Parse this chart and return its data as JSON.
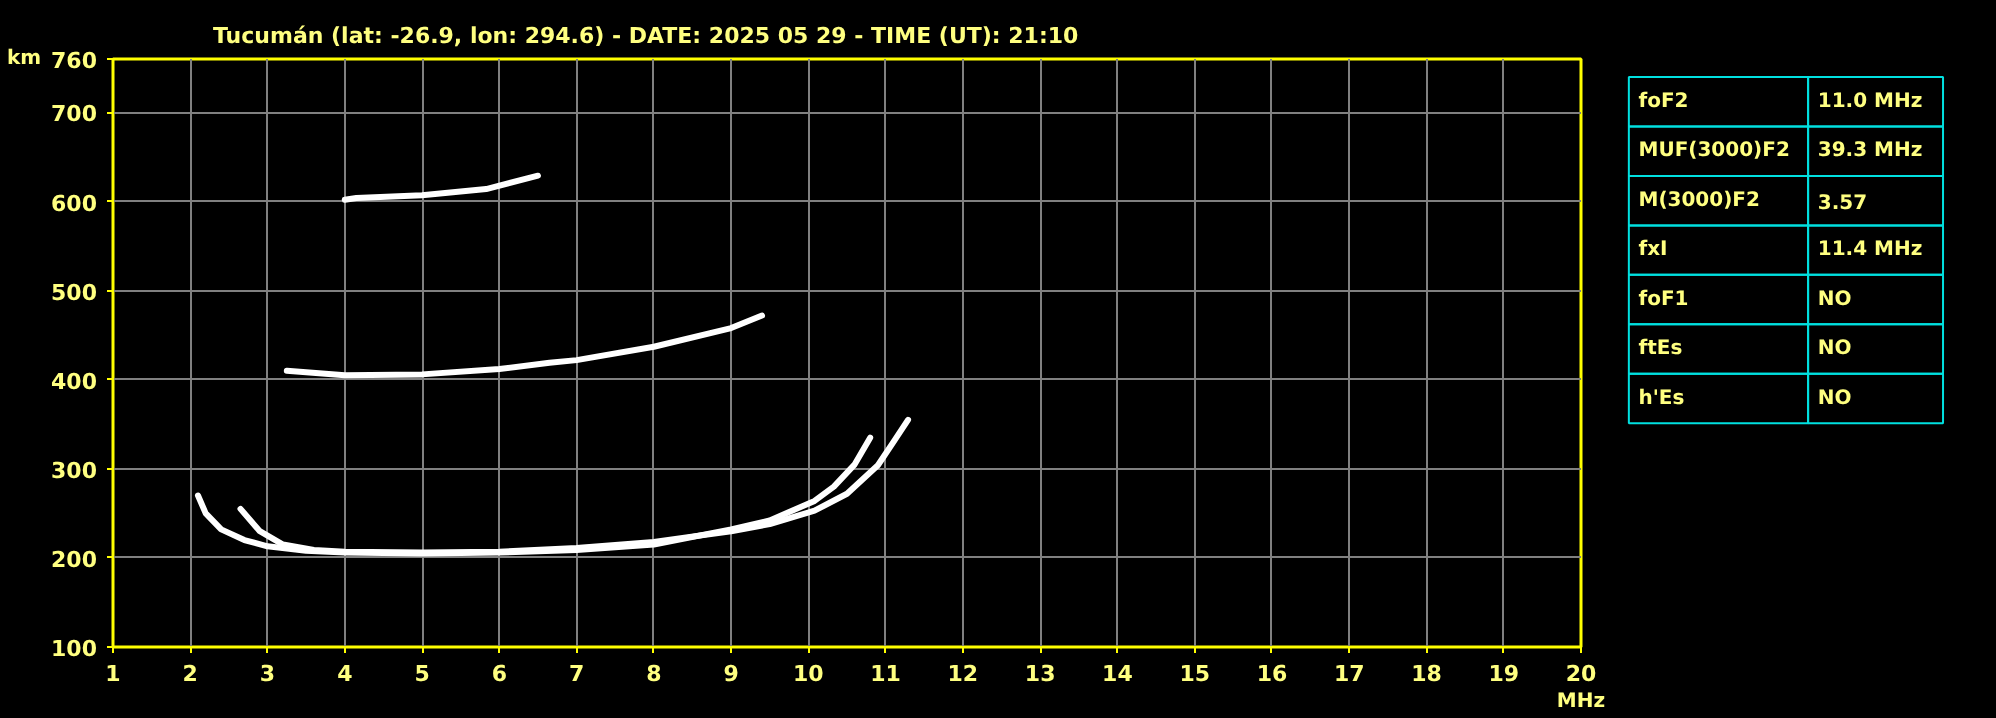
{
  "chart_data": [
    {
      "type": "line",
      "title": "Tucumán (lat: -26.9, lon: 294.6) - DATE: 2025 05 29 - TIME (UT): 21:10",
      "xlabel": "MHz",
      "ylabel": "km",
      "xlim": [
        1,
        20
      ],
      "xticks": [
        1,
        2,
        3,
        4,
        5,
        6,
        7,
        8,
        9,
        10,
        11,
        12,
        13,
        14,
        15,
        16,
        17,
        18,
        19,
        20
      ],
      "ylim": [
        100,
        760
      ],
      "yticks": [
        100,
        200,
        300,
        400,
        500,
        600,
        700,
        760
      ],
      "grid": true,
      "series": [
        {
          "color": "#ffffff",
          "x": [
            2.1,
            2.2,
            2.4,
            2.7,
            3.0,
            3.5,
            4.0,
            5.0,
            6.0,
            7.0,
            8.0,
            9.0,
            9.5,
            10.08,
            10.33,
            10.6,
            10.8
          ],
          "values": [
            270,
            250,
            232,
            220,
            213,
            208,
            206,
            205,
            206,
            209,
            215,
            232,
            242,
            264,
            280,
            305,
            335
          ]
        },
        {
          "color": "#ffffff",
          "x": [
            2.65,
            2.9,
            3.2,
            3.6,
            4.0,
            5.0,
            6.0,
            7.0,
            8.0,
            9.0,
            9.5,
            10.08,
            10.5,
            10.9,
            11.1,
            11.29
          ],
          "values": [
            255,
            230,
            215,
            209,
            207,
            206,
            207,
            211,
            218,
            230,
            238,
            253,
            272,
            304,
            330,
            355
          ]
        },
        {
          "color": "#ffffff",
          "x": [
            3.25,
            4.0,
            5.0,
            6.0,
            6.65,
            7.0,
            8.0,
            9.0,
            9.4
          ],
          "values": [
            410,
            405,
            406,
            412,
            419,
            422,
            437,
            458,
            472
          ]
        },
        {
          "color": "#ffffff",
          "x": [
            4.0,
            4.15,
            5.0,
            5.83,
            6.5
          ],
          "values": [
            602,
            604,
            607,
            614,
            629
          ]
        }
      ]
    },
    {
      "type": "other",
      "categories": [
        "foF2",
        "MUF(3000)F2",
        "M(3000)F2",
        "fxI",
        "foF1",
        "ftEs",
        "h'Es"
      ],
      "value_labels": [
        "11.0 MHz",
        "39.3 MHz",
        "3.57",
        "11.4 MHz",
        "NO",
        "NO",
        "NO"
      ]
    }
  ]
}
